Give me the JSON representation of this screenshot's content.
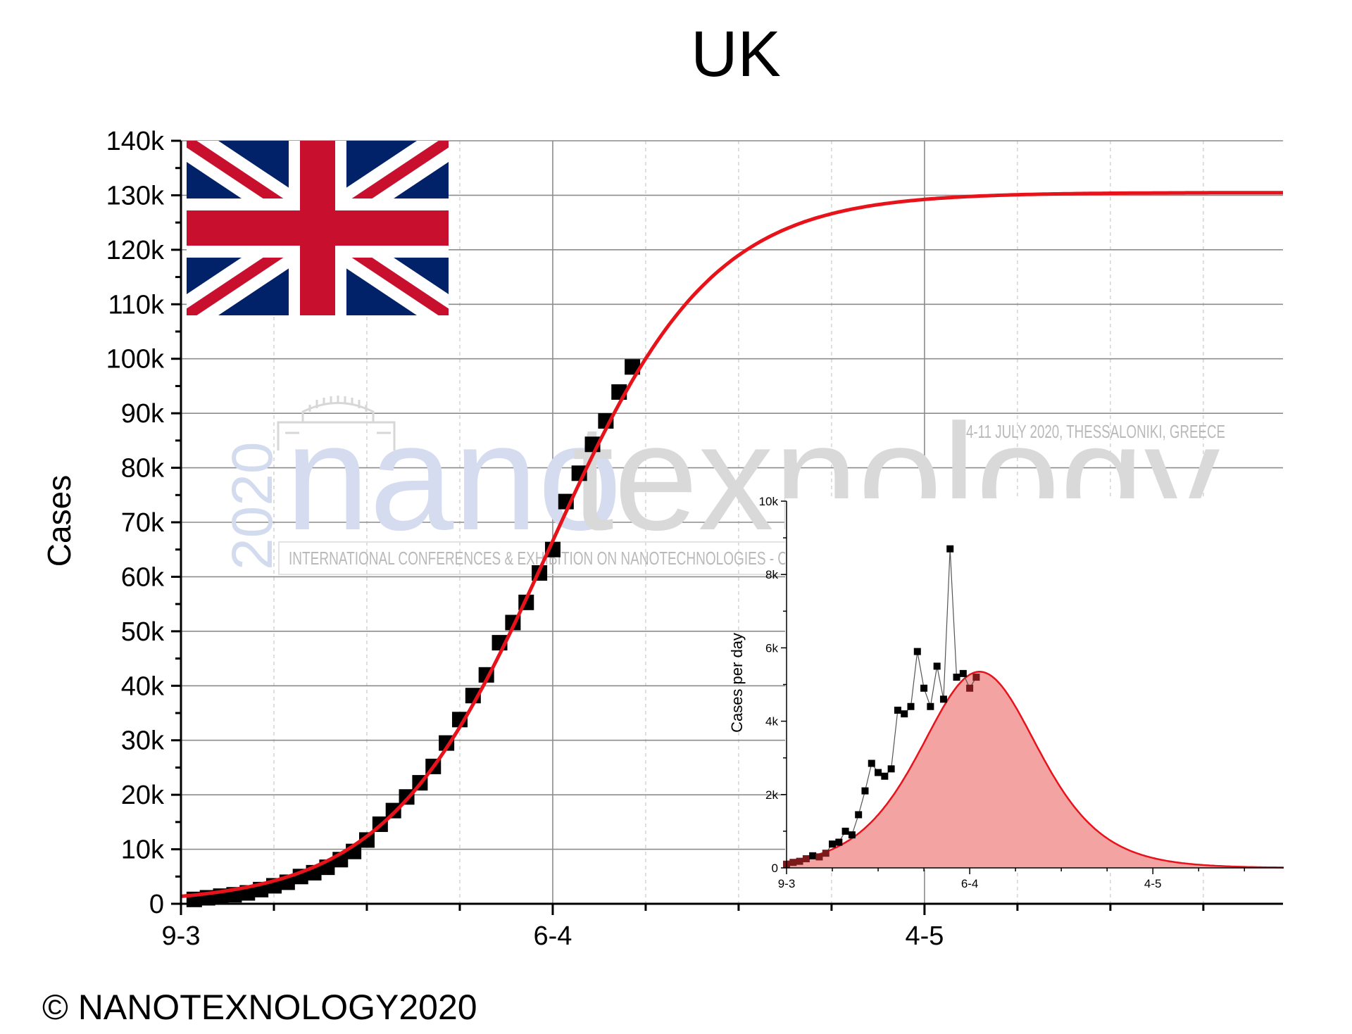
{
  "chart_data": [
    {
      "type": "scatter",
      "title": "UK",
      "xlabel": "",
      "ylabel": "Cases",
      "x_tick_labels": [
        {
          "label": "9-3",
          "day": 0
        },
        {
          "label": "6-4",
          "day": 28
        },
        {
          "label": "4-5",
          "day": 56
        }
      ],
      "x_range_days": [
        0,
        83
      ],
      "minor_tick_step_days": 7,
      "ylim": [
        0,
        140000
      ],
      "y_tick_labels": [
        "0",
        "10k",
        "20k",
        "30k",
        "40k",
        "50k",
        "60k",
        "70k",
        "80k",
        "90k",
        "100k",
        "110k",
        "120k",
        "130k",
        "140k"
      ],
      "y_tick_values": [
        0,
        10000,
        20000,
        30000,
        40000,
        50000,
        60000,
        70000,
        80000,
        90000,
        100000,
        110000,
        120000,
        130000,
        140000
      ],
      "grid": true,
      "series": [
        {
          "kind": "data points",
          "marker": "square",
          "color": "#000000",
          "points": [
            [
              1,
              800
            ],
            [
              2,
              1100
            ],
            [
              3,
              1400
            ],
            [
              4,
              1650
            ],
            [
              5,
              2000
            ],
            [
              6,
              2600
            ],
            [
              7,
              3300
            ],
            [
              8,
              3950
            ],
            [
              9,
              5000
            ],
            [
              10,
              5700
            ],
            [
              11,
              6700
            ],
            [
              12,
              8100
            ],
            [
              13,
              9600
            ],
            [
              14,
              11700
            ],
            [
              15,
              14600
            ],
            [
              16,
              17100
            ],
            [
              17,
              19600
            ],
            [
              18,
              22200
            ],
            [
              19,
              25200
            ],
            [
              20,
              29500
            ],
            [
              21,
              33800
            ],
            [
              22,
              38200
            ],
            [
              23,
              42000
            ],
            [
              24,
              47900
            ],
            [
              25,
              51600
            ],
            [
              26,
              55300
            ],
            [
              27,
              60700
            ],
            [
              28,
              65000
            ],
            [
              29,
              73800
            ],
            [
              30,
              79000
            ],
            [
              31,
              84300
            ],
            [
              32,
              88600
            ],
            [
              33,
              93900
            ],
            [
              34,
              98500
            ]
          ]
        },
        {
          "kind": "fit",
          "style": "line",
          "color": "#e8121b",
          "model": "logistic",
          "K": 130500,
          "midpoint_day": 27.75,
          "scale_days": 6.1
        }
      ],
      "overlays": {
        "flag": "union-jack",
        "watermark": {
          "main_left": "nano",
          "main_right": "texnology",
          "year": "2020",
          "event": "4-11 JULY 2020, THESSALONIKI, GREECE",
          "subtitle": "INTERNATIONAL CONFERENCES & EXHIBITION ON NANOTECHNOLOGIES - ORGANIC ELECTRONICS & NANOMEDICINE"
        },
        "copyright": "© NANOTEXNOLOGY2020"
      }
    },
    {
      "type": "area",
      "title": "",
      "xlabel": "",
      "ylabel": "Cases per day",
      "x_tick_labels": [
        {
          "label": "9-3",
          "day": 0
        },
        {
          "label": "6-4",
          "day": 28
        },
        {
          "label": "4-5",
          "day": 56
        }
      ],
      "x_range_days": [
        0,
        76
      ],
      "ylim": [
        0,
        10000
      ],
      "y_tick_labels": [
        "0",
        "2k",
        "4k",
        "6k",
        "8k",
        "10k"
      ],
      "y_tick_values": [
        0,
        2000,
        4000,
        6000,
        8000,
        10000
      ],
      "grid": false,
      "series": [
        {
          "kind": "daily new cases",
          "marker": "square",
          "color": "#000000",
          "connected": true,
          "points": [
            [
              0,
              100
            ],
            [
              1,
              150
            ],
            [
              2,
              180
            ],
            [
              3,
              250
            ],
            [
              4,
              330
            ],
            [
              5,
              300
            ],
            [
              6,
              400
            ],
            [
              7,
              650
            ],
            [
              8,
              700
            ],
            [
              9,
              1000
            ],
            [
              10,
              900
            ],
            [
              11,
              1450
            ],
            [
              12,
              2100
            ],
            [
              13,
              2850
            ],
            [
              14,
              2600
            ],
            [
              15,
              2500
            ],
            [
              16,
              2700
            ],
            [
              17,
              4300
            ],
            [
              18,
              4200
            ],
            [
              19,
              4400
            ],
            [
              20,
              5900
            ],
            [
              21,
              4900
            ],
            [
              22,
              4400
            ],
            [
              23,
              5500
            ],
            [
              24,
              4600
            ],
            [
              25,
              8700
            ],
            [
              26,
              5200
            ],
            [
              27,
              5300
            ],
            [
              28,
              4900
            ],
            [
              29,
              5200
            ]
          ]
        },
        {
          "kind": "fit derivative",
          "style": "filled area",
          "line_color": "#e8121b",
          "fill_color": "#f4a3a3",
          "peak_value": 5350,
          "peak_day": 29.5,
          "scale_days": 6.1
        }
      ]
    }
  ]
}
